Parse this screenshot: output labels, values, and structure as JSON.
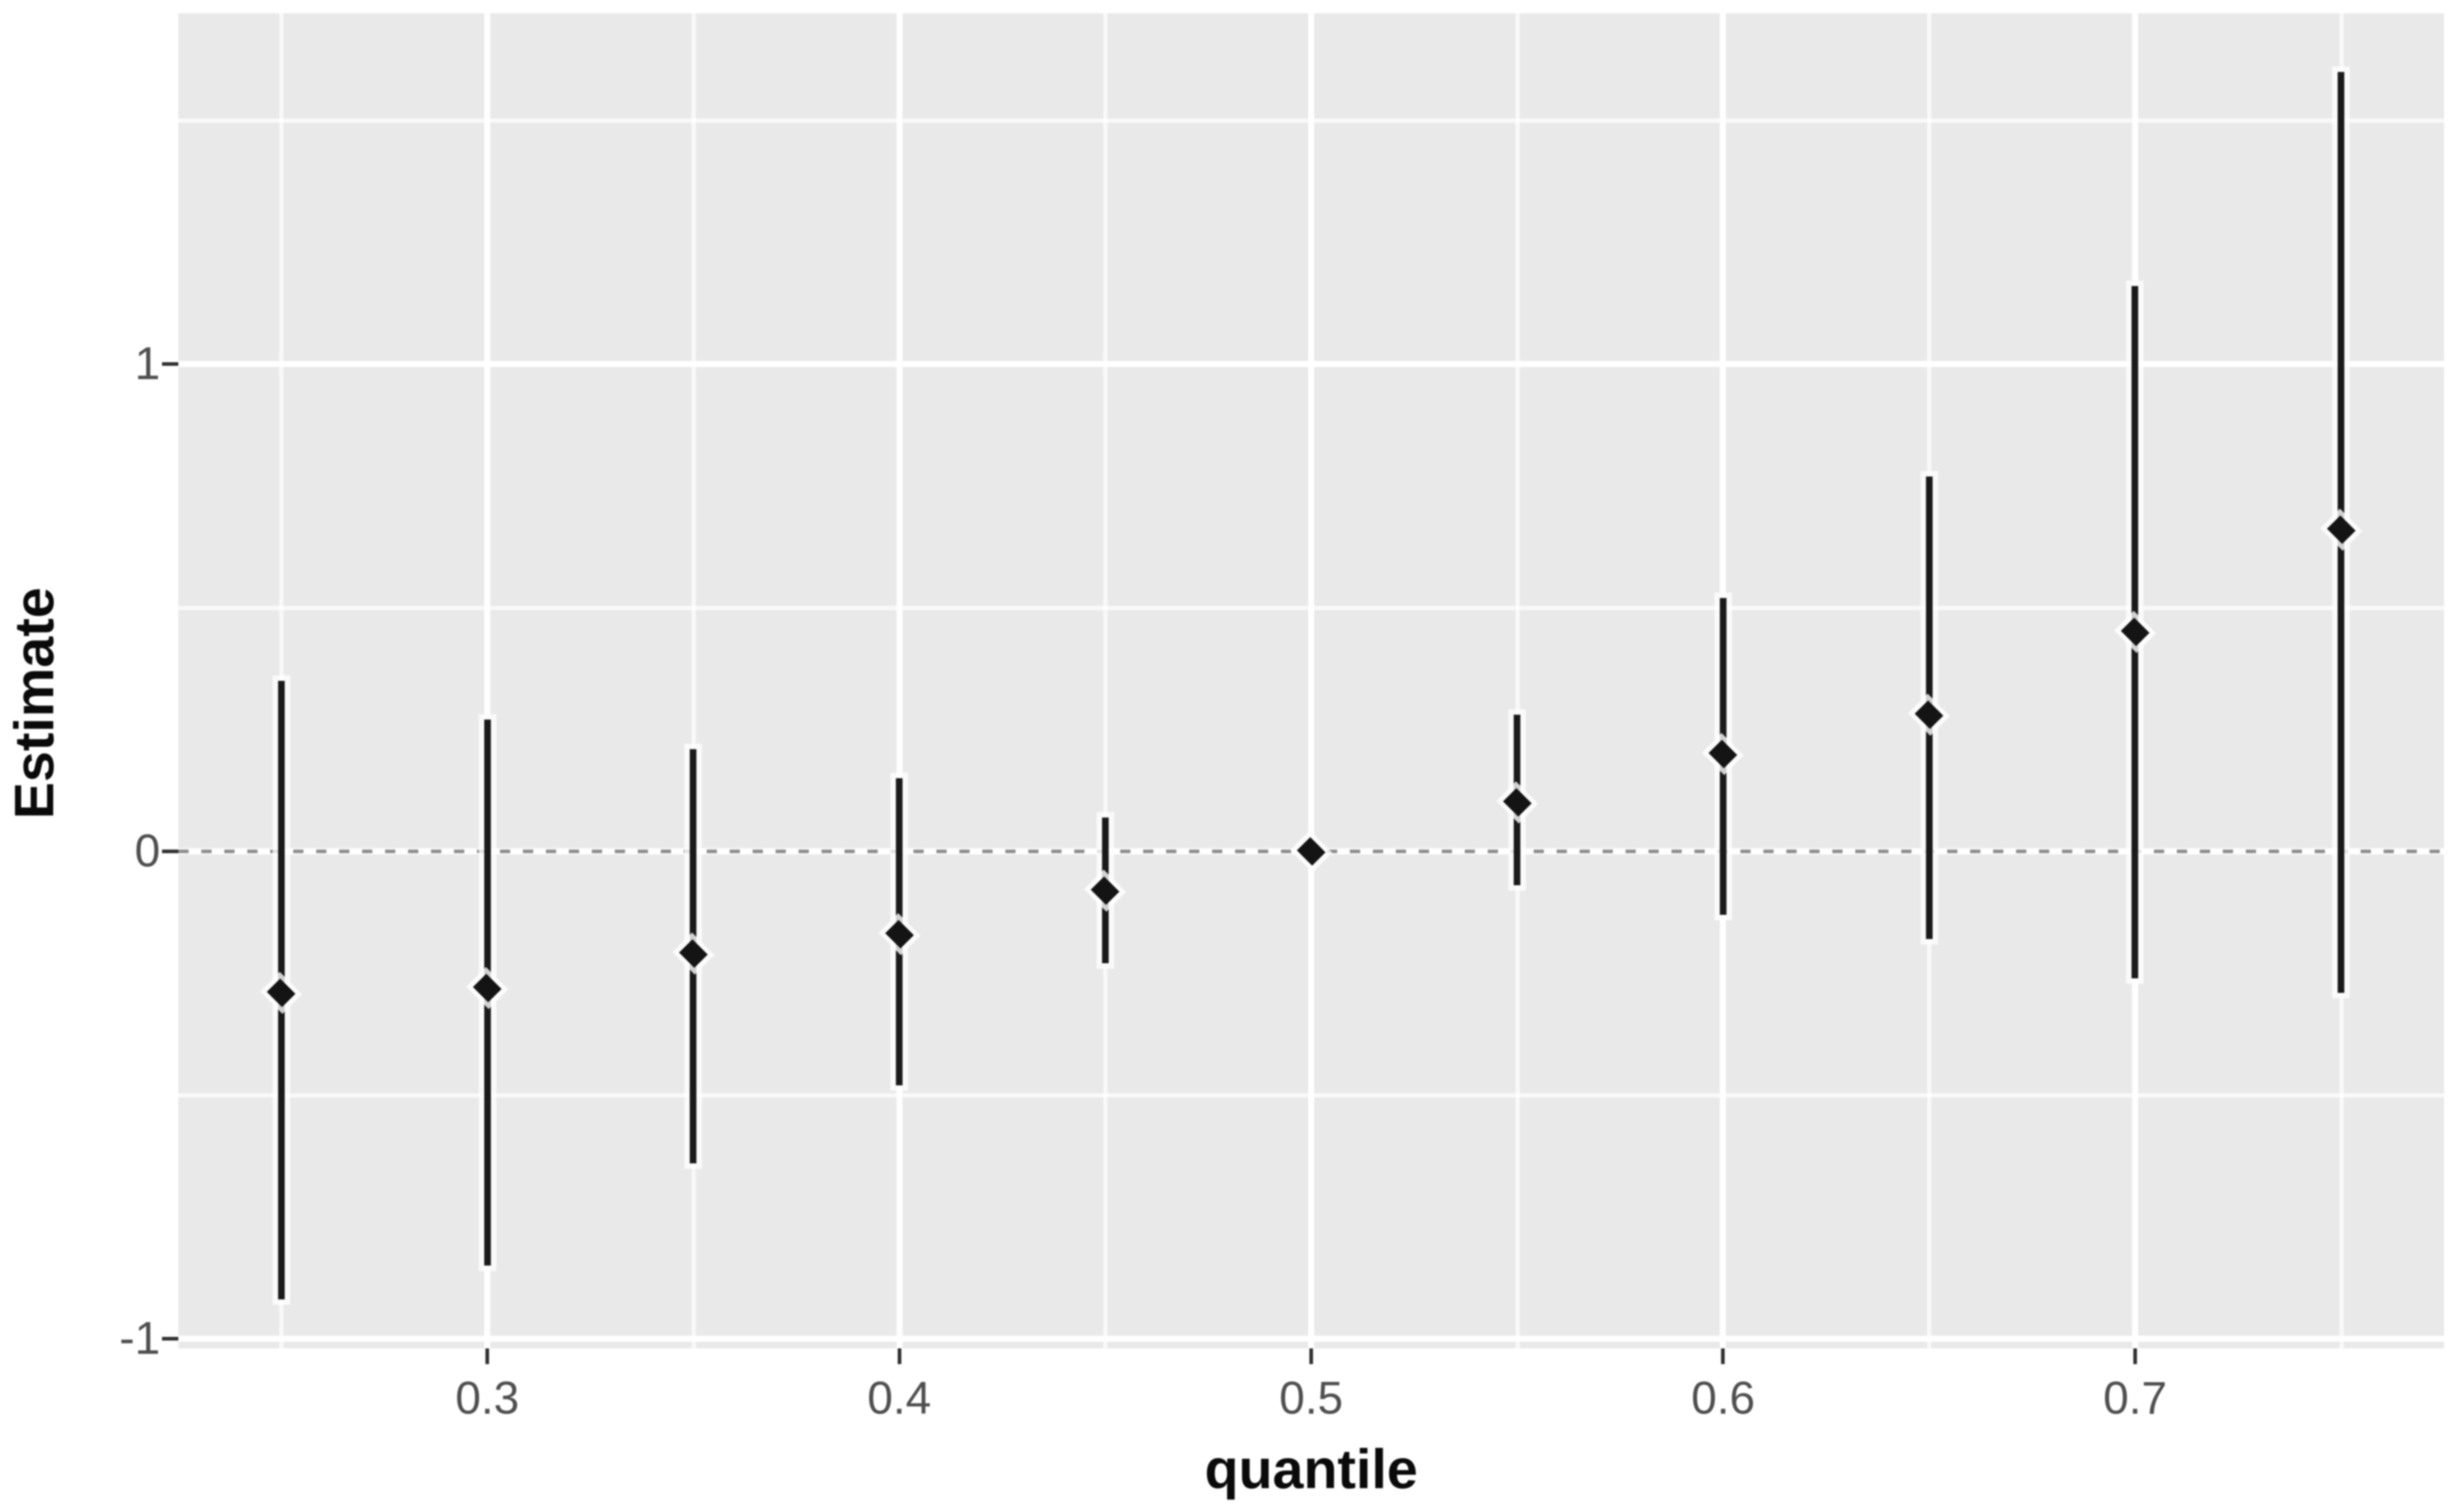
{
  "chart_data": {
    "type": "scatter",
    "subtype": "pointrange",
    "title": "",
    "xlabel": "quantile",
    "ylabel": "Estimate",
    "x_ticks": [
      0.3,
      0.4,
      0.5,
      0.6,
      0.7
    ],
    "x_tick_labels": [
      "0.3",
      "0.4",
      "0.5",
      "0.6",
      "0.7"
    ],
    "x_minor_gridlines": [
      0.25,
      0.35,
      0.45,
      0.55,
      0.65,
      0.75
    ],
    "y_ticks": [
      -1,
      0,
      1
    ],
    "y_tick_labels": [
      "-1",
      "0",
      "1"
    ],
    "y_minor_gridlines": [
      -0.5,
      0.5,
      1.5
    ],
    "xlim": [
      0.225,
      0.775
    ],
    "ylim": [
      -1.02,
      1.72
    ],
    "grid": "white major and minor gridlines on gray panel",
    "legend_position": "none",
    "reference_line": {
      "y": 0,
      "style": "dashed"
    },
    "points": [
      {
        "x": 0.25,
        "estimate": -0.29,
        "lower": -0.92,
        "upper": 0.35
      },
      {
        "x": 0.3,
        "estimate": -0.28,
        "lower": -0.85,
        "upper": 0.27
      },
      {
        "x": 0.35,
        "estimate": -0.21,
        "lower": -0.64,
        "upper": 0.21
      },
      {
        "x": 0.4,
        "estimate": -0.17,
        "lower": -0.48,
        "upper": 0.15
      },
      {
        "x": 0.45,
        "estimate": -0.08,
        "lower": -0.23,
        "upper": 0.07
      },
      {
        "x": 0.5,
        "estimate": 0.0,
        "lower": 0.0,
        "upper": 0.0
      },
      {
        "x": 0.55,
        "estimate": 0.1,
        "lower": -0.07,
        "upper": 0.28
      },
      {
        "x": 0.6,
        "estimate": 0.2,
        "lower": -0.13,
        "upper": 0.52
      },
      {
        "x": 0.65,
        "estimate": 0.28,
        "lower": -0.18,
        "upper": 0.77
      },
      {
        "x": 0.7,
        "estimate": 0.45,
        "lower": -0.26,
        "upper": 1.16
      },
      {
        "x": 0.75,
        "estimate": 0.66,
        "lower": -0.29,
        "upper": 1.6
      }
    ]
  },
  "style": {
    "page_bg": "#ffffff",
    "panel_bg": "#e9e9e9",
    "grid_color": "#ffffff",
    "point_color": "#141414",
    "bar_color": "#1a1a1a",
    "dash_color": "#8e8e8e",
    "tick_color": "#2f2f2f",
    "tick_label_color": "#4f4f4f",
    "axis_title_color": "#0a0a0a"
  }
}
